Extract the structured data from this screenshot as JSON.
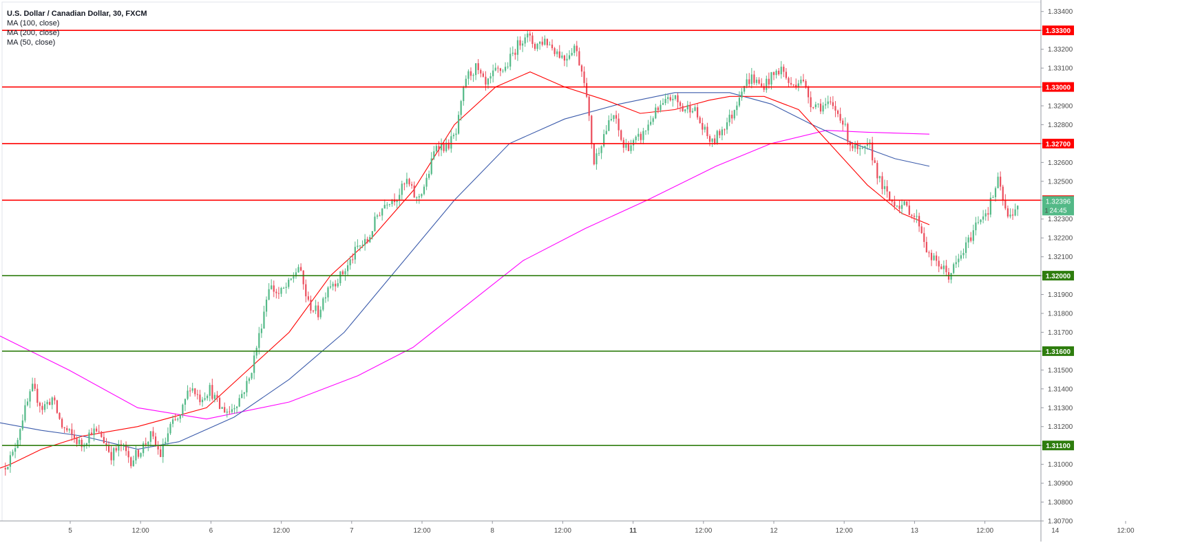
{
  "chart_data": {
    "type": "candlestick",
    "title": "U.S. Dollar / Canadian Dollar, 30, FXCM",
    "indicators": [
      "MA (100, close)",
      "MA (200, close)",
      "MA (50, close)"
    ],
    "x_ticks": [
      "5",
      "12:00",
      "6",
      "12:00",
      "7",
      "12:00",
      "8",
      "12:00",
      "11",
      "12:00",
      "12",
      "12:00",
      "13",
      "12:00",
      "14",
      "12:00"
    ],
    "y_ticks": [
      "1.33400",
      "1.33300",
      "1.33200",
      "1.33100",
      "1.33000",
      "1.32900",
      "1.32800",
      "1.32700",
      "1.32600",
      "1.32500",
      "1.32400",
      "1.32300",
      "1.32200",
      "1.32100",
      "1.32000",
      "1.31900",
      "1.31800",
      "1.31700",
      "1.31600",
      "1.31500",
      "1.31400",
      "1.31300",
      "1.31200",
      "1.31100",
      "1.31000",
      "1.30900",
      "1.30800",
      "1.30700"
    ],
    "ylim": [
      1.307,
      1.3345
    ],
    "resistance_levels": [
      {
        "value": 1.333,
        "label": "1.33300"
      },
      {
        "value": 1.33,
        "label": "1.33000"
      },
      {
        "value": 1.327,
        "label": "1.32700"
      },
      {
        "value": 1.324,
        "label": "1.32400"
      }
    ],
    "support_levels": [
      {
        "value": 1.32,
        "label": "1.32000"
      },
      {
        "value": 1.316,
        "label": "1.31600"
      },
      {
        "value": 1.311,
        "label": "1.31100"
      }
    ],
    "last_price": {
      "value": 1.32396,
      "label": "1.32396",
      "countdown": "24:45",
      "prefix": "1"
    },
    "price_path": [
      1.3098,
      1.3105,
      1.3125,
      1.314,
      1.313,
      1.3135,
      1.312,
      1.3115,
      1.311,
      1.3118,
      1.3115,
      1.3105,
      1.311,
      1.3102,
      1.3108,
      1.3115,
      1.3105,
      1.312,
      1.3125,
      1.3142,
      1.3135,
      1.314,
      1.313,
      1.3128,
      1.3135,
      1.3145,
      1.3168,
      1.3195,
      1.319,
      1.3195,
      1.3205,
      1.3185,
      1.318,
      1.3195,
      1.3198,
      1.3205,
      1.3215,
      1.3218,
      1.3232,
      1.324,
      1.3242,
      1.325,
      1.324,
      1.325,
      1.327,
      1.3268,
      1.3275,
      1.3305,
      1.331,
      1.33,
      1.3308,
      1.331,
      1.332,
      1.3328,
      1.3322,
      1.3325,
      1.332,
      1.3315,
      1.3322,
      1.3305,
      1.326,
      1.3275,
      1.3285,
      1.3268,
      1.327,
      1.3275,
      1.3285,
      1.329,
      1.3295,
      1.3288,
      1.329,
      1.3278,
      1.327,
      1.3278,
      1.3285,
      1.33,
      1.3305,
      1.33,
      1.3305,
      1.331,
      1.33,
      1.3305,
      1.3292,
      1.329,
      1.329,
      1.3285,
      1.327,
      1.3265,
      1.3268,
      1.325,
      1.324,
      1.3238,
      1.3235,
      1.3228,
      1.321,
      1.3206,
      1.32,
      1.3208,
      1.3218,
      1.323,
      1.3235,
      1.325,
      1.323,
      1.3238
    ],
    "ma50": [
      [
        0,
        1.3098
      ],
      [
        15,
        1.31
      ],
      [
        60,
        1.3108
      ],
      [
        120,
        1.3115
      ],
      [
        200,
        1.312
      ],
      [
        300,
        1.313
      ],
      [
        360,
        1.315
      ],
      [
        420,
        1.317
      ],
      [
        480,
        1.32
      ],
      [
        540,
        1.322
      ],
      [
        600,
        1.3245
      ],
      [
        660,
        1.328
      ],
      [
        720,
        1.33
      ],
      [
        770,
        1.3308
      ],
      [
        820,
        1.33
      ],
      [
        880,
        1.3293
      ],
      [
        930,
        1.3286
      ],
      [
        980,
        1.3288
      ],
      [
        1030,
        1.3293
      ],
      [
        1060,
        1.3295
      ],
      [
        1110,
        1.3295
      ],
      [
        1160,
        1.3288
      ],
      [
        1210,
        1.3268
      ],
      [
        1260,
        1.3248
      ],
      [
        1310,
        1.3233
      ],
      [
        1350,
        1.3227
      ]
    ],
    "ma100": [
      [
        0,
        1.3122
      ],
      [
        60,
        1.3118
      ],
      [
        120,
        1.3115
      ],
      [
        200,
        1.3108
      ],
      [
        260,
        1.3112
      ],
      [
        340,
        1.3125
      ],
      [
        420,
        1.3145
      ],
      [
        500,
        1.317
      ],
      [
        580,
        1.3205
      ],
      [
        660,
        1.324
      ],
      [
        740,
        1.327
      ],
      [
        820,
        1.3283
      ],
      [
        900,
        1.3291
      ],
      [
        980,
        1.3297
      ],
      [
        1060,
        1.3297
      ],
      [
        1120,
        1.3291
      ],
      [
        1180,
        1.328
      ],
      [
        1240,
        1.327
      ],
      [
        1300,
        1.3262
      ],
      [
        1350,
        1.3258
      ]
    ],
    "ma200": [
      [
        0,
        1.3168
      ],
      [
        100,
        1.315
      ],
      [
        200,
        1.313
      ],
      [
        300,
        1.3124
      ],
      [
        420,
        1.3133
      ],
      [
        520,
        1.3147
      ],
      [
        600,
        1.3162
      ],
      [
        680,
        1.3185
      ],
      [
        760,
        1.3208
      ],
      [
        850,
        1.3225
      ],
      [
        940,
        1.324
      ],
      [
        1040,
        1.3258
      ],
      [
        1120,
        1.327
      ],
      [
        1200,
        1.3277
      ],
      [
        1260,
        1.3276
      ],
      [
        1350,
        1.3275
      ]
    ],
    "colors": {
      "up": "#53b987",
      "down": "#eb4d5c",
      "ma50": "#ff0000",
      "ma100": "#3b5bab",
      "ma200": "#ff00ff",
      "resistance": "#ff0000",
      "support": "#2e7d0e",
      "last_price": "#53b987",
      "axis_text": "#4a4a4a"
    }
  }
}
